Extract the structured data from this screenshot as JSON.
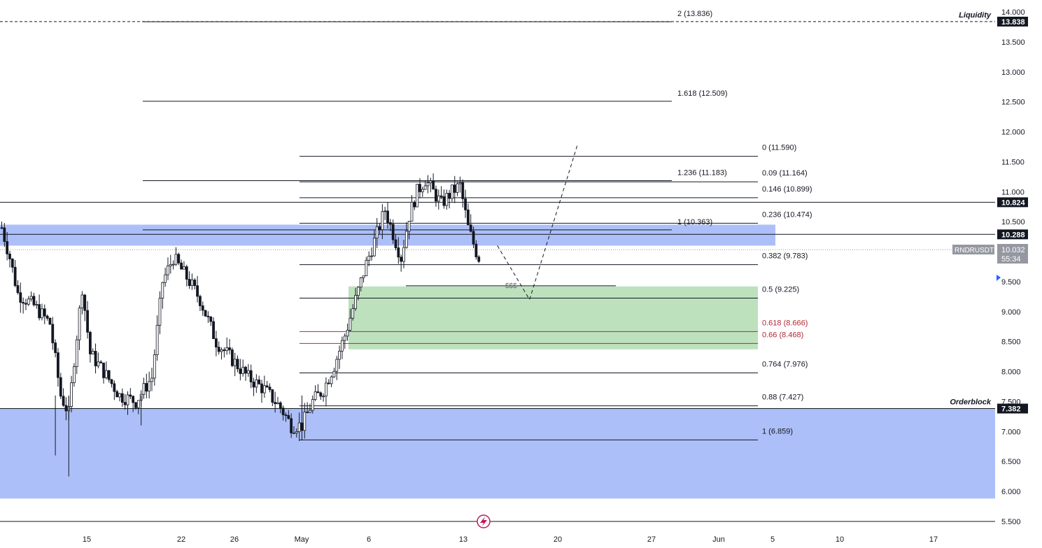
{
  "chart_data": {
    "type": "candlestick",
    "symbol": "RNDRUSDT",
    "price": {
      "last": "10.032",
      "countdown": "55:34",
      "scale_ticks": [
        "14.000",
        "13.500",
        "13.000",
        "12.500",
        "12.000",
        "11.500",
        "11.000",
        "10.500",
        "10.000",
        "9.500",
        "9.000",
        "8.500",
        "8.000",
        "7.500",
        "7.000",
        "6.500",
        "6.000",
        "5.500"
      ]
    },
    "price_range": [
      5.4,
      14.1
    ],
    "time_ticks": [
      "15",
      "22",
      "26",
      "May",
      "6",
      "13",
      "20",
      "27",
      "Jun",
      "5",
      "10",
      "17"
    ],
    "marked_levels": [
      {
        "label": "Liquidity",
        "value": "13.838",
        "price": 13.838
      },
      {
        "label": "",
        "value": "10.824",
        "price": 10.824
      },
      {
        "label": "",
        "value": "10.288",
        "price": 10.288
      },
      {
        "label": "Orderblock",
        "value": "7.382",
        "price": 7.382
      }
    ],
    "fib_extension": [
      {
        "label": "2 (13.836)",
        "price": 13.836
      },
      {
        "label": "1.618 (12.509)",
        "price": 12.509
      },
      {
        "label": "1.236 (11.183)",
        "price": 11.183
      },
      {
        "label": "1 (10.363)",
        "price": 10.363
      }
    ],
    "fib_retracement": [
      {
        "label": "0 (11.590)",
        "price": 11.59,
        "color": "#131722"
      },
      {
        "label": "0.09 (11.164)",
        "price": 11.164,
        "color": "#131722"
      },
      {
        "label": "0.146 (10.899)",
        "price": 10.899,
        "color": "#131722"
      },
      {
        "label": "0.236 (10.474)",
        "price": 10.474,
        "color": "#131722"
      },
      {
        "label": "0.382 (9.783)",
        "price": 9.783,
        "color": "#131722"
      },
      {
        "label": "0.5 (9.225)",
        "price": 9.225,
        "color": "#131722"
      },
      {
        "label": "0.618 (8.666)",
        "price": 8.666,
        "color": "#b22833"
      },
      {
        "label": "0.66 (8.468)",
        "price": 8.468,
        "color": "#b22833"
      },
      {
        "label": "0.764 (7.976)",
        "price": 7.976,
        "color": "#131722"
      },
      {
        "label": "0.88 (7.427)",
        "price": 7.427,
        "color": "#131722"
      },
      {
        "label": "1 (6.859)",
        "price": 6.859,
        "color": "#131722"
      }
    ],
    "zones": [
      {
        "name": "supply-zone",
        "top": 10.45,
        "bottom": 10.1,
        "color": "#a9bcf8"
      },
      {
        "name": "demand-zone",
        "top": 9.42,
        "bottom": 8.37,
        "color": "#b9dfb8"
      },
      {
        "name": "orderblock-zone",
        "top": 7.382,
        "bottom": 5.88,
        "color": "#a9bcf8"
      }
    ],
    "liquidity_mark": {
      "label": "$$$",
      "price": 9.43
    },
    "projection_path": [
      {
        "bar": 178,
        "price": 10.1
      },
      {
        "bar": 190,
        "price": 9.2
      },
      {
        "bar": 208,
        "price": 11.8
      }
    ],
    "colors": {
      "up": "#131722",
      "down": "#131722",
      "up_body": "#ffffff",
      "down_body": "#131722",
      "axis_text": "#131722",
      "grid": "#ffffff"
    }
  },
  "badges": {
    "lightning_icon": "lightning-icon"
  }
}
